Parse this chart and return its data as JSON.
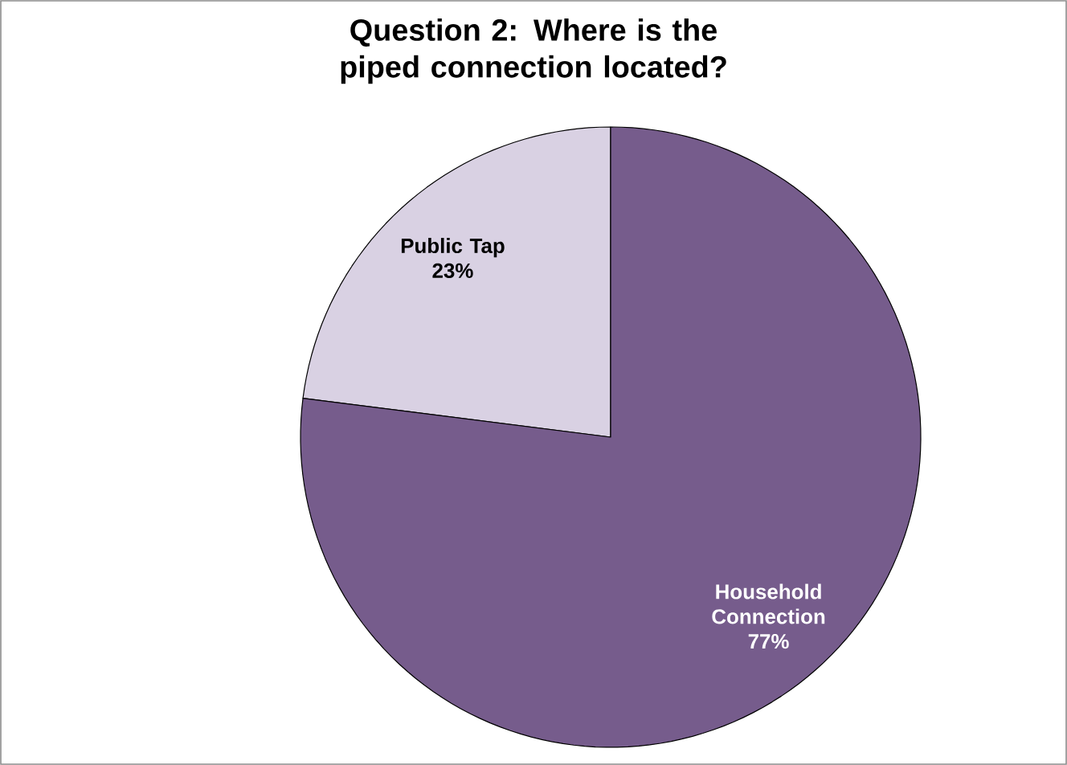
{
  "chart_data": {
    "type": "pie",
    "title": "Question 2: Where is the piped connection located?",
    "categories": [
      "Public Tap",
      "Household Connection"
    ],
    "values": [
      23,
      77
    ],
    "value_labels": [
      "23%",
      "77%"
    ],
    "colors": [
      "#d9d1e3",
      "#765c8c"
    ]
  }
}
